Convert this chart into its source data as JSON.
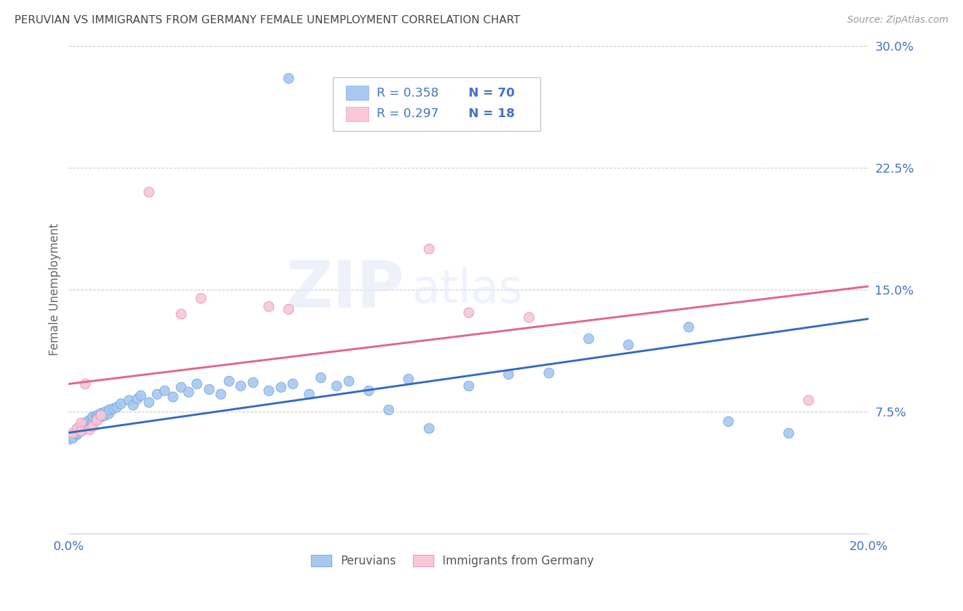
{
  "title": "PERUVIAN VS IMMIGRANTS FROM GERMANY FEMALE UNEMPLOYMENT CORRELATION CHART",
  "source": "Source: ZipAtlas.com",
  "ylabel": "Female Unemployment",
  "x_min": 0.0,
  "x_max": 0.2,
  "y_min": 0.0,
  "y_max": 0.3,
  "y_ticks": [
    0.075,
    0.15,
    0.225,
    0.3
  ],
  "y_tick_labels": [
    "7.5%",
    "15.0%",
    "22.5%",
    "30.0%"
  ],
  "x_ticks": [
    0.0,
    0.05,
    0.1,
    0.15,
    0.2
  ],
  "x_tick_labels": [
    "0.0%",
    "",
    "",
    "",
    "20.0%"
  ],
  "series1_label": "Peruvians",
  "series1_color": "#a8c8f0",
  "series1_edge_color": "#7aaee0",
  "series1_line_color": "#3a6abf",
  "series1_R": 0.358,
  "series1_N": 70,
  "series2_label": "Immigrants from Germany",
  "series2_color": "#f8c8d8",
  "series2_edge_color": "#e898b8",
  "series2_line_color": "#e06888",
  "series2_R": 0.297,
  "series2_N": 18,
  "watermark_zip": "ZIP",
  "watermark_atlas": "atlas",
  "background_color": "#ffffff",
  "grid_color": "#cccccc",
  "title_color": "#444444",
  "axis_label_color": "#666666",
  "tick_color": "#4472c4",
  "legend_text_color": "#4472c4",
  "peruvians_x": [
    0.0,
    0.001,
    0.001,
    0.002,
    0.002,
    0.002,
    0.002,
    0.003,
    0.003,
    0.003,
    0.003,
    0.004,
    0.004,
    0.004,
    0.005,
    0.005,
    0.005,
    0.005,
    0.006,
    0.006,
    0.006,
    0.006,
    0.007,
    0.007,
    0.007,
    0.008,
    0.008,
    0.009,
    0.009,
    0.01,
    0.01,
    0.011,
    0.012,
    0.013,
    0.015,
    0.016,
    0.017,
    0.018,
    0.02,
    0.022,
    0.024,
    0.026,
    0.028,
    0.03,
    0.032,
    0.035,
    0.038,
    0.04,
    0.043,
    0.046,
    0.05,
    0.053,
    0.056,
    0.06,
    0.063,
    0.067,
    0.07,
    0.075,
    0.08,
    0.085,
    0.09,
    0.1,
    0.11,
    0.12,
    0.13,
    0.14,
    0.155,
    0.165,
    0.18,
    0.055
  ],
  "peruvians_y": [
    0.058,
    0.06,
    0.059,
    0.063,
    0.061,
    0.064,
    0.062,
    0.065,
    0.063,
    0.066,
    0.064,
    0.067,
    0.065,
    0.068,
    0.066,
    0.069,
    0.067,
    0.07,
    0.068,
    0.071,
    0.069,
    0.072,
    0.07,
    0.073,
    0.071,
    0.072,
    0.074,
    0.073,
    0.075,
    0.074,
    0.076,
    0.077,
    0.078,
    0.08,
    0.082,
    0.079,
    0.083,
    0.085,
    0.081,
    0.086,
    0.088,
    0.084,
    0.09,
    0.087,
    0.092,
    0.089,
    0.086,
    0.094,
    0.091,
    0.093,
    0.088,
    0.09,
    0.092,
    0.086,
    0.096,
    0.091,
    0.094,
    0.088,
    0.076,
    0.095,
    0.065,
    0.091,
    0.098,
    0.099,
    0.12,
    0.116,
    0.127,
    0.069,
    0.062,
    0.28
  ],
  "germany_x": [
    0.001,
    0.002,
    0.003,
    0.003,
    0.004,
    0.005,
    0.006,
    0.007,
    0.008,
    0.02,
    0.028,
    0.033,
    0.05,
    0.055,
    0.09,
    0.1,
    0.115,
    0.185
  ],
  "germany_y": [
    0.062,
    0.065,
    0.068,
    0.063,
    0.092,
    0.064,
    0.066,
    0.07,
    0.073,
    0.21,
    0.135,
    0.145,
    0.14,
    0.138,
    0.175,
    0.136,
    0.133,
    0.082
  ],
  "trendline1_x0": 0.0,
  "trendline1_y0": 0.062,
  "trendline1_x1": 0.2,
  "trendline1_y1": 0.132,
  "trendline2_x0": 0.0,
  "trendline2_y0": 0.092,
  "trendline2_x1": 0.2,
  "trendline2_y1": 0.152
}
